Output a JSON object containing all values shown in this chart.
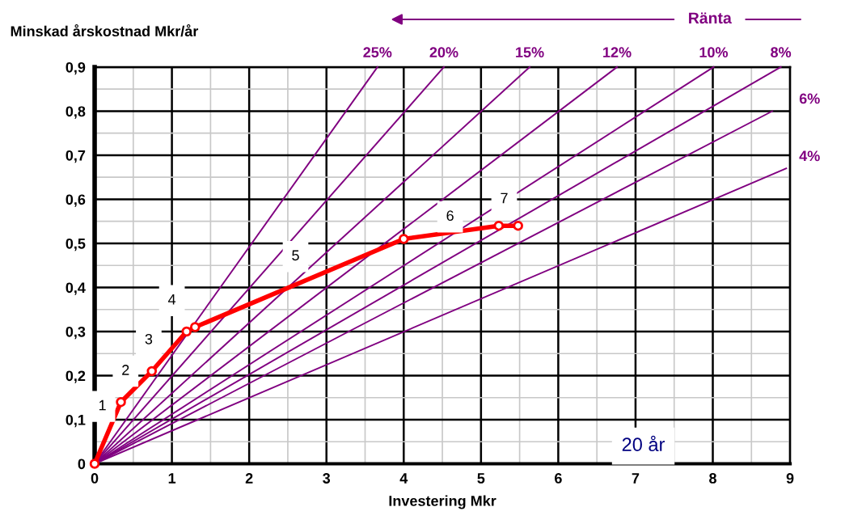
{
  "chart_data": {
    "type": "line",
    "xlabel": "Investering Mkr",
    "ylabel": "Minskad årskostnad Mkr/år",
    "xlim": [
      0,
      9
    ],
    "ylim": [
      0,
      0.9
    ],
    "xticks": [
      0,
      {
        "value": 0.5,
        "label": null
      },
      1,
      {
        "value": 1.5,
        "label": null
      },
      2,
      {
        "value": 2.5,
        "label": null
      },
      3,
      {
        "value": 3.5,
        "label": null
      },
      4,
      {
        "value": 4.5,
        "label": null
      },
      5,
      {
        "value": 5.5,
        "label": null
      },
      6,
      {
        "value": 6.5,
        "label": null
      },
      7,
      {
        "value": 7.5,
        "label": null
      },
      8,
      {
        "value": 8.5,
        "label": null
      },
      9
    ],
    "yticks": [
      0,
      {
        "value": 0.05,
        "label": null
      },
      {
        "value": 0.1,
        "label": "0,1"
      },
      {
        "value": 0.15,
        "label": null
      },
      {
        "value": 0.2,
        "label": "0,2"
      },
      {
        "value": 0.25,
        "label": null
      },
      {
        "value": 0.3,
        "label": "0,3"
      },
      {
        "value": 0.35,
        "label": null
      },
      {
        "value": 0.4,
        "label": "0,4"
      },
      {
        "value": 0.45,
        "label": null
      },
      {
        "value": 0.5,
        "label": "0,5"
      },
      {
        "value": 0.55,
        "label": null
      },
      {
        "value": 0.6,
        "label": "0,6"
      },
      {
        "value": 0.65,
        "label": null
      },
      {
        "value": 0.7,
        "label": "0,7"
      },
      {
        "value": 0.75,
        "label": null
      },
      {
        "value": 0.8,
        "label": "0,8"
      },
      {
        "value": 0.85,
        "label": null
      },
      {
        "value": 0.9,
        "label": "0,9"
      }
    ],
    "grid": true,
    "series": [
      {
        "name": "25%",
        "color": "#800080",
        "x": [
          0,
          3.66
        ],
        "values": [
          0,
          0.9
        ],
        "marker": "none"
      },
      {
        "name": "20%",
        "color": "#800080",
        "x": [
          0,
          4.52
        ],
        "values": [
          0,
          0.9
        ],
        "marker": "none"
      },
      {
        "name": "15%",
        "color": "#800080",
        "x": [
          0,
          5.63
        ],
        "values": [
          0,
          0.9
        ],
        "marker": "none"
      },
      {
        "name": "12%",
        "color": "#800080",
        "x": [
          0,
          6.76
        ],
        "values": [
          0,
          0.9
        ],
        "marker": "none"
      },
      {
        "name": "10%",
        "color": "#800080",
        "x": [
          0,
          8.01
        ],
        "values": [
          0,
          0.9
        ],
        "marker": "none"
      },
      {
        "name": "8%",
        "color": "#800080",
        "x": [
          0,
          8.88
        ],
        "values": [
          0,
          0.9
        ],
        "marker": "none"
      },
      {
        "name": "6%",
        "color": "#800080",
        "x": [
          0,
          8.77
        ],
        "values": [
          0,
          0.8
        ],
        "marker": "none"
      },
      {
        "name": "4%",
        "color": "#800080",
        "x": [
          0,
          8.95
        ],
        "values": [
          0,
          0.67
        ],
        "marker": "none"
      },
      {
        "color": "#ff0000",
        "x": [
          0,
          0.34,
          0.74,
          1.19,
          1.3,
          4.0,
          5.23,
          5.48
        ],
        "values": [
          0,
          0.14,
          0.21,
          0.3,
          0.31,
          0.51,
          0.54,
          0.54
        ],
        "marker": "circle"
      }
    ],
    "annotations": [
      {
        "text": "1",
        "x": 0.1,
        "y": 0.13
      },
      {
        "text": "2",
        "x": 0.4,
        "y": 0.21
      },
      {
        "text": "3",
        "x": 0.7,
        "y": 0.28
      },
      {
        "text": "4",
        "x": 1.0,
        "y": 0.37
      },
      {
        "text": "5",
        "x": 2.6,
        "y": 0.47
      },
      {
        "text": "6",
        "x": 4.6,
        "y": 0.56
      },
      {
        "text": "7",
        "x": 5.3,
        "y": 0.6
      },
      "Ränta",
      "20 år"
    ]
  }
}
